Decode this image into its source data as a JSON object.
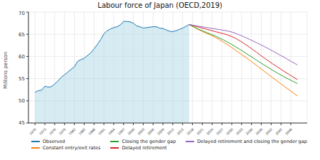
{
  "chart_data": {
    "type": "line",
    "title": "Labour force of Japan (OECD,2019)",
    "y_label": "Millions person",
    "grid": true,
    "legend": "bottom",
    "x": [
      1970,
      1971,
      1972,
      1973,
      1974,
      1975,
      1976,
      1977,
      1978,
      1979,
      1980,
      1981,
      1982,
      1983,
      1984,
      1985,
      1986,
      1987,
      1988,
      1989,
      1990,
      1991,
      1992,
      1993,
      1994,
      1995,
      1996,
      1997,
      1998,
      1999,
      2000,
      2001,
      2002,
      2003,
      2004,
      2005,
      2006,
      2007,
      2008,
      2009,
      2010,
      2011,
      2012,
      2013,
      2014,
      2015,
      2016,
      2017,
      2020,
      2025,
      2030,
      2035,
      2040,
      2045,
      2050
    ],
    "xlim": [
      1968,
      2053
    ],
    "xticks": [
      1970,
      1973,
      1976,
      1979,
      1982,
      1985,
      1988,
      1991,
      1994,
      1997,
      2000,
      2003,
      2006,
      2009,
      2012,
      2015,
      2018,
      2021,
      2024,
      2027,
      2030,
      2033,
      2036,
      2039,
      2042,
      2045,
      2048
    ],
    "ylim": [
      45,
      70
    ],
    "yticks": [
      45,
      50,
      55,
      60,
      65,
      70
    ],
    "series": [
      {
        "name": "Observed",
        "type": "area",
        "color": "#1f77b4",
        "values": [
          51.9,
          52.3,
          52.4,
          53.3,
          53.1,
          53.2,
          53.8,
          54.5,
          55.3,
          55.9,
          56.5,
          57.1,
          57.7,
          58.9,
          59.3,
          59.6,
          60.2,
          60.8,
          61.7,
          62.7,
          63.8,
          65.1,
          65.8,
          66.2,
          66.5,
          66.7,
          67.1,
          67.9,
          67.9,
          67.8,
          67.5,
          66.9,
          66.7,
          66.4,
          66.5,
          66.6,
          66.7,
          66.7,
          66.4,
          66.3,
          66.0,
          65.7,
          65.6,
          65.8,
          66.1,
          66.4,
          66.8,
          67.2,
          null,
          null,
          null,
          null,
          null,
          null,
          null
        ]
      },
      {
        "name": "Constant entry/exit rates",
        "type": "line",
        "color": "#ff7f0e",
        "values": [
          null,
          null,
          null,
          null,
          null,
          null,
          null,
          null,
          null,
          null,
          null,
          null,
          null,
          null,
          null,
          null,
          null,
          null,
          null,
          null,
          null,
          null,
          null,
          null,
          null,
          null,
          null,
          null,
          null,
          null,
          null,
          null,
          null,
          null,
          null,
          null,
          null,
          null,
          null,
          null,
          null,
          null,
          null,
          null,
          null,
          null,
          null,
          67.2,
          66.0,
          64.3,
          62.0,
          59.4,
          56.6,
          53.8,
          51.1
        ]
      },
      {
        "name": "Closing the gender gap",
        "type": "line",
        "color": "#2ca02c",
        "values": [
          null,
          null,
          null,
          null,
          null,
          null,
          null,
          null,
          null,
          null,
          null,
          null,
          null,
          null,
          null,
          null,
          null,
          null,
          null,
          null,
          null,
          null,
          null,
          null,
          null,
          null,
          null,
          null,
          null,
          null,
          null,
          null,
          null,
          null,
          null,
          null,
          null,
          null,
          null,
          null,
          null,
          null,
          null,
          null,
          null,
          null,
          null,
          67.2,
          66.1,
          64.6,
          62.7,
          60.4,
          58.0,
          55.8,
          53.9
        ]
      },
      {
        "name": "Delayed retirement",
        "type": "line",
        "color": "#d62728",
        "values": [
          null,
          null,
          null,
          null,
          null,
          null,
          null,
          null,
          null,
          null,
          null,
          null,
          null,
          null,
          null,
          null,
          null,
          null,
          null,
          null,
          null,
          null,
          null,
          null,
          null,
          null,
          null,
          null,
          null,
          null,
          null,
          null,
          null,
          null,
          null,
          null,
          null,
          null,
          null,
          null,
          null,
          null,
          null,
          null,
          null,
          null,
          null,
          67.2,
          66.6,
          65.6,
          64.5,
          62.3,
          59.6,
          57.1,
          54.8
        ]
      },
      {
        "name": "Delayed retirement and closing the gender gap",
        "type": "line",
        "color": "#9467bd",
        "values": [
          null,
          null,
          null,
          null,
          null,
          null,
          null,
          null,
          null,
          null,
          null,
          null,
          null,
          null,
          null,
          null,
          null,
          null,
          null,
          null,
          null,
          null,
          null,
          null,
          null,
          null,
          null,
          null,
          null,
          null,
          null,
          null,
          null,
          null,
          null,
          null,
          null,
          null,
          null,
          null,
          null,
          null,
          null,
          null,
          null,
          null,
          null,
          67.2,
          66.8,
          66.2,
          65.5,
          64.0,
          62.2,
          60.2,
          58.1
        ]
      }
    ]
  }
}
